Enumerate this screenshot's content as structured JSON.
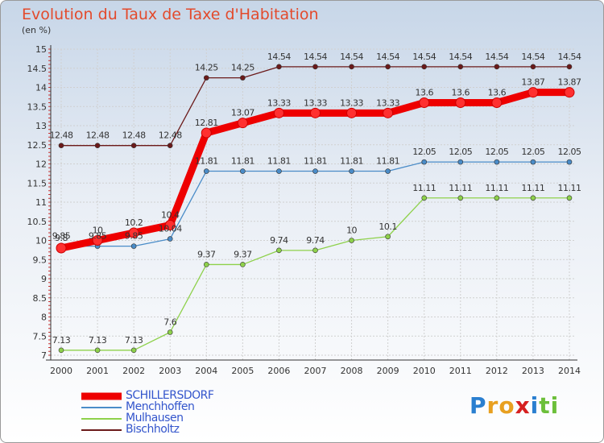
{
  "chart_data": {
    "type": "line",
    "title": "Evolution du Taux de Taxe d'Habitation",
    "subtitle": "(en %)",
    "categories": [
      "2000",
      "2001",
      "2002",
      "2003",
      "2004",
      "2005",
      "2006",
      "2007",
      "2008",
      "2009",
      "2010",
      "2011",
      "2012",
      "2013",
      "2014"
    ],
    "ylim": [
      7,
      15
    ],
    "yticks": [
      "7",
      "7.5",
      "8",
      "8.5",
      "9",
      "9.5",
      "10",
      "10.5",
      "11",
      "11.5",
      "12",
      "12.5",
      "13",
      "13.5",
      "14",
      "14.5",
      "15"
    ],
    "grid": true,
    "legend_placement": "bottom-left",
    "series": [
      {
        "name": "Bischholtz",
        "color": "#6b1a1a",
        "values": [
          12.48,
          12.48,
          12.48,
          12.48,
          14.25,
          14.25,
          14.54,
          14.54,
          14.54,
          14.54,
          14.54,
          14.54,
          14.54,
          14.54,
          14.54
        ],
        "labels": [
          "12.48",
          "12.48",
          "12.48",
          "12.48",
          "14.25",
          "14.25",
          "14.54",
          "14.54",
          "14.54",
          "14.54",
          "14.54",
          "14.54",
          "14.54",
          "14.54",
          "14.54"
        ]
      },
      {
        "name": "Menchhoffen",
        "color": "#4a8cc8",
        "values": [
          9.85,
          9.85,
          9.85,
          10.04,
          11.81,
          11.81,
          11.81,
          11.81,
          11.81,
          11.81,
          12.05,
          12.05,
          12.05,
          12.05,
          12.05
        ],
        "labels": [
          "9.85",
          "9.85",
          "9.85",
          "10.04",
          "11.81",
          "11.81",
          "11.81",
          "11.81",
          "11.81",
          "11.81",
          "12.05",
          "12.05",
          "12.05",
          "12.05",
          "12.05"
        ]
      },
      {
        "name": "Mulhausen",
        "color": "#8ed14b",
        "values": [
          7.13,
          7.13,
          7.13,
          7.6,
          9.37,
          9.37,
          9.74,
          9.74,
          10,
          10.1,
          11.11,
          11.11,
          11.11,
          11.11,
          11.11
        ],
        "labels": [
          "7.13",
          "7.13",
          "7.13",
          "7.6",
          "9.37",
          "9.37",
          "9.74",
          "9.74",
          "10",
          "10.1",
          "11.11",
          "11.11",
          "11.11",
          "11.11",
          "11.11"
        ]
      },
      {
        "name": "SCHILLERSDORF",
        "color": "#ee0000",
        "values": [
          9.8,
          10,
          10.2,
          10.4,
          12.81,
          13.07,
          13.33,
          13.33,
          13.33,
          13.33,
          13.6,
          13.6,
          13.6,
          13.87,
          13.87
        ],
        "labels": [
          "9.8",
          "10",
          "10.2",
          "10.4",
          "12.81",
          "13.07",
          "13.33",
          "13.33",
          "13.33",
          "13.33",
          "13.6",
          "13.6",
          "13.6",
          "13.87",
          "13.87"
        ]
      }
    ]
  },
  "legend": [
    {
      "label": "SCHILLERSDORF",
      "color": "#ee0000",
      "style": "thick"
    },
    {
      "label": "Menchhoffen",
      "color": "#4a8cc8",
      "style": "thin"
    },
    {
      "label": "Mulhausen",
      "color": "#8ed14b",
      "style": "thin"
    },
    {
      "label": "Bischholtz",
      "color": "#6b1a1a",
      "style": "thin"
    }
  ],
  "logo": {
    "text": "Proxiti",
    "letters": [
      {
        "ch": "P",
        "color": "#2a7fd0"
      },
      {
        "ch": "r",
        "color": "#e8a020"
      },
      {
        "ch": "o",
        "color": "#e8a020"
      },
      {
        "ch": "x",
        "color": "#d62020"
      },
      {
        "ch": "i",
        "color": "#2a7fd0"
      },
      {
        "ch": "t",
        "color": "#6cbf3a"
      },
      {
        "ch": "i",
        "color": "#6cbf3a"
      }
    ]
  }
}
